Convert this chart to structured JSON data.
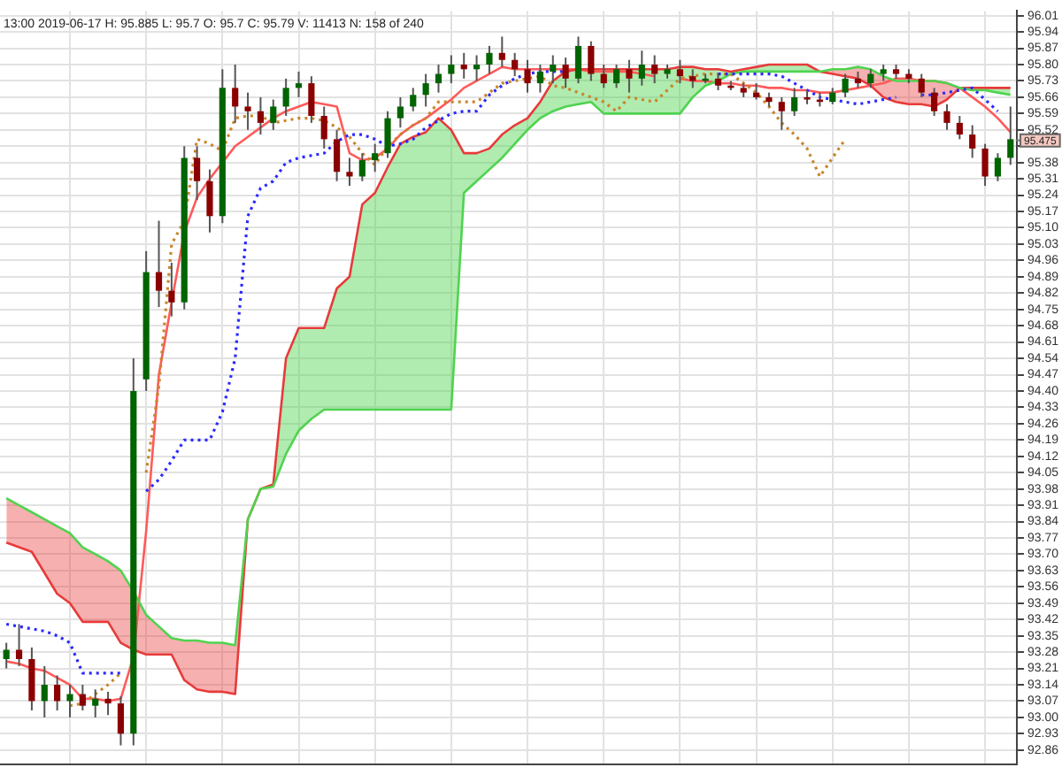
{
  "chart_data": {
    "type": "candlestick",
    "annotations": [
      "13:00 2019-06-17 H: 95.885 L: 95.7 O: 95.7 C: 95.79 V: 11413 N: 158 of 240",
      {
        "text": "95.475",
        "y": 95.475
      }
    ],
    "categories": [
      null,
      null,
      null,
      null,
      null,
      null,
      null,
      null,
      null,
      null,
      null,
      null,
      null,
      null,
      null,
      null,
      null,
      null,
      null,
      null,
      null,
      null,
      null,
      null,
      null,
      null,
      null,
      null,
      null,
      null,
      null,
      null,
      null,
      null,
      null,
      null,
      null,
      null,
      null,
      null,
      null,
      null,
      null,
      null,
      null,
      null,
      null,
      null,
      null,
      null,
      null,
      null,
      null,
      null,
      null,
      null,
      null,
      null,
      null,
      null,
      null,
      null,
      null,
      null,
      null,
      null,
      null,
      null,
      null,
      null,
      null,
      null,
      null,
      null,
      null,
      null,
      null,
      null,
      null,
      null
    ],
    "ohlc": [
      [
        93.25,
        93.32,
        93.21,
        93.29
      ],
      [
        93.29,
        93.4,
        93.22,
        93.25
      ],
      [
        93.25,
        93.3,
        93.03,
        93.07
      ],
      [
        93.07,
        93.22,
        93.0,
        93.14
      ],
      [
        93.14,
        93.18,
        93.03,
        93.07
      ],
      [
        93.07,
        93.14,
        93.0,
        93.1
      ],
      [
        93.1,
        93.14,
        93.03,
        93.05
      ],
      [
        93.05,
        93.12,
        93.0,
        93.08
      ],
      [
        93.08,
        93.11,
        93.01,
        93.06
      ],
      [
        93.06,
        93.09,
        92.88,
        92.93
      ],
      [
        92.93,
        94.54,
        92.88,
        94.4
      ],
      [
        94.45,
        95.0,
        94.4,
        94.91
      ],
      [
        94.91,
        95.13,
        94.76,
        94.83
      ],
      [
        94.83,
        94.95,
        94.72,
        94.78
      ],
      [
        94.78,
        95.45,
        94.75,
        95.4
      ],
      [
        95.4,
        95.45,
        95.22,
        95.3
      ],
      [
        95.3,
        95.35,
        95.08,
        95.15
      ],
      [
        95.15,
        95.78,
        95.12,
        95.7
      ],
      [
        95.7,
        95.8,
        95.55,
        95.62
      ],
      [
        95.62,
        95.68,
        95.52,
        95.6
      ],
      [
        95.6,
        95.66,
        95.5,
        95.55
      ],
      [
        95.55,
        95.65,
        95.52,
        95.62
      ],
      [
        95.62,
        95.74,
        95.58,
        95.7
      ],
      [
        95.7,
        95.77,
        95.66,
        95.72
      ],
      [
        95.72,
        95.75,
        95.55,
        95.58
      ],
      [
        95.58,
        95.62,
        95.44,
        95.48
      ],
      [
        95.48,
        95.52,
        95.3,
        95.34
      ],
      [
        95.34,
        95.4,
        95.28,
        95.32
      ],
      [
        95.32,
        95.42,
        95.3,
        95.39
      ],
      [
        95.39,
        95.46,
        95.34,
        95.42
      ],
      [
        95.42,
        95.6,
        95.4,
        95.57
      ],
      [
        95.57,
        95.66,
        95.53,
        95.62
      ],
      [
        95.62,
        95.7,
        95.6,
        95.67
      ],
      [
        95.67,
        95.76,
        95.62,
        95.72
      ],
      [
        95.72,
        95.8,
        95.68,
        95.76
      ],
      [
        95.76,
        95.84,
        95.72,
        95.8
      ],
      [
        95.8,
        95.85,
        95.74,
        95.78
      ],
      [
        95.78,
        95.84,
        95.73,
        95.8
      ],
      [
        95.8,
        95.88,
        95.76,
        95.85
      ],
      [
        95.85,
        95.92,
        95.79,
        95.82
      ],
      [
        95.82,
        95.85,
        95.75,
        95.78
      ],
      [
        95.78,
        95.82,
        95.68,
        95.72
      ],
      [
        95.72,
        95.8,
        95.68,
        95.77
      ],
      [
        95.77,
        95.84,
        95.72,
        95.8
      ],
      [
        95.8,
        95.83,
        95.7,
        95.74
      ],
      [
        95.74,
        95.92,
        95.72,
        95.88
      ],
      [
        95.88,
        95.9,
        95.73,
        95.76
      ],
      [
        95.76,
        95.8,
        95.7,
        95.72
      ],
      [
        95.72,
        95.8,
        95.7,
        95.78
      ],
      [
        95.78,
        95.82,
        95.68,
        95.74
      ],
      [
        95.74,
        95.86,
        95.71,
        95.8
      ],
      [
        95.8,
        95.84,
        95.72,
        95.76
      ],
      [
        95.76,
        95.8,
        95.74,
        95.78
      ],
      [
        95.78,
        95.82,
        95.72,
        95.75
      ],
      [
        95.75,
        95.78,
        95.7,
        95.73
      ],
      [
        95.73,
        95.76,
        95.72,
        95.74
      ],
      [
        95.74,
        95.76,
        95.69,
        95.71
      ],
      [
        95.71,
        95.73,
        95.69,
        95.7
      ],
      [
        95.7,
        95.72,
        95.66,
        95.68
      ],
      [
        95.68,
        95.72,
        95.65,
        95.66
      ],
      [
        95.66,
        95.68,
        95.62,
        95.64
      ],
      [
        95.64,
        95.66,
        95.52,
        95.6
      ],
      [
        95.6,
        95.7,
        95.58,
        95.66
      ],
      [
        95.66,
        95.69,
        95.63,
        95.65
      ],
      [
        95.65,
        95.68,
        95.62,
        95.64
      ],
      [
        95.64,
        95.7,
        95.63,
        95.68
      ],
      [
        95.68,
        95.76,
        95.66,
        95.74
      ],
      [
        95.74,
        95.77,
        95.7,
        95.72
      ],
      [
        95.72,
        95.78,
        95.7,
        95.76
      ],
      [
        95.76,
        95.8,
        95.73,
        95.78
      ],
      [
        95.78,
        95.8,
        95.74,
        95.76
      ],
      [
        95.76,
        95.78,
        95.72,
        95.74
      ],
      [
        95.74,
        95.76,
        95.66,
        95.68
      ],
      [
        95.68,
        95.7,
        95.58,
        95.6
      ],
      [
        95.6,
        95.63,
        95.52,
        95.55
      ],
      [
        95.55,
        95.58,
        95.48,
        95.5
      ],
      [
        95.5,
        95.54,
        95.4,
        95.44
      ],
      [
        95.44,
        95.46,
        95.28,
        95.32
      ],
      [
        95.32,
        95.42,
        95.3,
        95.4
      ],
      [
        95.4,
        95.62,
        95.37,
        95.48
      ]
    ],
    "colors": [
      "#006400",
      "#8b0000",
      "#8b0000",
      "#006400",
      "#8b0000",
      "#006400",
      "#8b0000",
      "#006400",
      "#8b0000",
      "#8b0000",
      "#006400",
      "#006400",
      "#8b0000",
      "#8b0000",
      "#006400",
      "#8b0000",
      "#8b0000",
      "#006400",
      "#8b0000",
      "#8b0000",
      "#8b0000",
      "#006400",
      "#006400",
      "#006400",
      "#8b0000",
      "#8b0000",
      "#8b0000",
      "#8b0000",
      "#006400",
      "#006400",
      "#006400",
      "#006400",
      "#006400",
      "#006400",
      "#006400",
      "#006400",
      "#8b0000",
      "#006400",
      "#006400",
      "#8b0000",
      "#8b0000",
      "#8b0000",
      "#006400",
      "#006400",
      "#8b0000",
      "#006400",
      "#8b0000",
      "#8b0000",
      "#006400",
      "#8b0000",
      "#006400",
      "#8b0000",
      "#006400",
      "#8b0000",
      "#8b0000",
      "#006400",
      "#8b0000",
      "#8b0000",
      "#8b0000",
      "#8b0000",
      "#8b0000",
      "#8b0000",
      "#006400",
      "#8b0000",
      "#8b0000",
      "#006400",
      "#006400",
      "#8b0000",
      "#006400",
      "#006400",
      "#8b0000",
      "#8b0000",
      "#8b0000",
      "#8b0000",
      "#8b0000",
      "#8b0000",
      "#8b0000",
      "#8b0000",
      "#006400",
      "#006400"
    ],
    "series": [
      {
        "type": "line",
        "color": "#4fd34f",
        "values": [
          93.94,
          93.91,
          93.88,
          93.85,
          93.82,
          93.79,
          93.73,
          93.7,
          93.67,
          93.63,
          93.54,
          93.44,
          93.39,
          93.34,
          93.33,
          93.33,
          93.32,
          93.32,
          93.31,
          93.85,
          93.98,
          93.99,
          94.13,
          94.23,
          94.28,
          94.32,
          94.32,
          94.32,
          94.32,
          94.32,
          94.32,
          94.32,
          94.32,
          94.32,
          94.32,
          94.32,
          95.25,
          95.3,
          95.35,
          95.4,
          95.46,
          95.52,
          95.57,
          95.6,
          95.62,
          95.63,
          95.64,
          95.59,
          95.59,
          95.59,
          95.59,
          95.59,
          95.59,
          95.59,
          95.66,
          95.71,
          95.73,
          95.76,
          95.77,
          95.77,
          95.77,
          95.77,
          95.77,
          95.77,
          95.77,
          95.78,
          95.78,
          95.79,
          95.78,
          95.75,
          95.73,
          95.73,
          95.73,
          95.73,
          95.72,
          95.7,
          95.69,
          95.69,
          95.68,
          95.67
        ]
      },
      {
        "type": "line",
        "color": "#e83a3a",
        "values": [
          93.75,
          93.73,
          93.71,
          93.62,
          93.53,
          93.49,
          93.41,
          93.41,
          93.41,
          93.32,
          93.29,
          93.27,
          93.27,
          93.27,
          93.16,
          93.12,
          93.11,
          93.11,
          93.1,
          93.85,
          93.98,
          94.0,
          94.54,
          94.67,
          94.67,
          94.67,
          94.84,
          94.89,
          95.2,
          95.25,
          95.36,
          95.46,
          95.49,
          95.51,
          95.57,
          95.52,
          95.42,
          95.42,
          95.44,
          95.5,
          95.54,
          95.57,
          95.64,
          95.73,
          95.77,
          95.78,
          95.78,
          95.78,
          95.78,
          95.78,
          95.78,
          95.78,
          95.78,
          95.79,
          95.79,
          95.78,
          95.78,
          95.77,
          95.78,
          95.79,
          95.8,
          95.8,
          95.8,
          95.8,
          95.77,
          95.76,
          95.75,
          95.74,
          95.71,
          95.66,
          95.64,
          95.63,
          95.63,
          95.62,
          95.65,
          95.7,
          95.7,
          95.7,
          95.7,
          95.7
        ],
        "lower": [
          93.94,
          93.91,
          93.88,
          93.85,
          93.82,
          93.79,
          93.73,
          93.7,
          93.67,
          93.63,
          93.54,
          93.44,
          93.39,
          93.34,
          93.33,
          93.33,
          93.32,
          93.32,
          93.31,
          93.85,
          93.98,
          93.99,
          94.13,
          94.23,
          94.28,
          94.32,
          94.32,
          94.32,
          94.32,
          94.32,
          94.32,
          94.32,
          94.32,
          94.32,
          94.32,
          94.32,
          95.25,
          95.3,
          95.35,
          95.4,
          95.46,
          95.52,
          95.57,
          95.6,
          95.62,
          95.63,
          95.64,
          95.59,
          95.59,
          95.59,
          95.59,
          95.59,
          95.59,
          95.59,
          95.66,
          95.71,
          95.73,
          95.76,
          95.77,
          95.77,
          95.77,
          95.77,
          95.77,
          95.77,
          95.77,
          95.78,
          95.78,
          95.79,
          95.78,
          95.75,
          95.73,
          95.73,
          95.73,
          95.73,
          95.72,
          95.7,
          95.69,
          95.69,
          95.68,
          95.67
        ],
        "upper": [
          93.75,
          93.73,
          93.71,
          93.62,
          93.53,
          93.49,
          93.41,
          93.41,
          93.41,
          93.32,
          93.29,
          93.27,
          93.27,
          93.27,
          93.16,
          93.12,
          93.11,
          93.11,
          93.1,
          93.85,
          93.98,
          94.0,
          94.54,
          94.67,
          94.67,
          94.67,
          94.84,
          94.89,
          95.2,
          95.25,
          95.36,
          95.46,
          95.49,
          95.51,
          95.57,
          95.52,
          95.42,
          95.42,
          95.44,
          95.5,
          95.54,
          95.57,
          95.64,
          95.73,
          95.77,
          95.78,
          95.78,
          95.78,
          95.78,
          95.78,
          95.78,
          95.78,
          95.78,
          95.79,
          95.79,
          95.78,
          95.78,
          95.77,
          95.78,
          95.79,
          95.8,
          95.8,
          95.8,
          95.8,
          95.77,
          95.76,
          95.75,
          95.74,
          95.71,
          95.66,
          95.64,
          95.63,
          95.63,
          95.62,
          95.65,
          95.7,
          95.7,
          95.7,
          95.7,
          95.7
        ]
      },
      {
        "type": "line",
        "color": "#ff5a5a",
        "values": [
          93.24,
          93.23,
          93.21,
          93.2,
          93.17,
          93.14,
          93.08,
          93.08,
          93.07,
          93.08,
          93.26,
          93.8,
          94.47,
          94.78,
          95.08,
          95.23,
          95.31,
          95.38,
          95.45,
          95.49,
          95.53,
          95.57,
          95.6,
          95.62,
          95.64,
          95.63,
          95.62,
          95.42,
          95.39,
          95.4,
          95.44,
          95.5,
          95.54,
          95.57,
          95.61,
          95.65,
          95.7,
          95.73,
          95.76,
          95.79,
          95.78,
          95.78,
          95.78,
          95.78,
          95.78,
          95.78,
          95.77,
          95.77,
          95.77,
          95.77,
          95.76,
          95.75,
          null,
          95.74,
          95.73,
          95.73,
          95.72,
          95.72,
          95.71,
          95.71,
          95.7,
          95.7,
          95.69,
          95.69,
          95.68,
          95.68,
          95.69,
          95.7,
          95.71,
          95.72,
          95.74,
          95.74,
          95.73,
          95.73,
          95.72,
          95.7,
          95.66,
          95.62,
          95.57,
          95.51
        ]
      },
      {
        "type": "line",
        "line_style": "dotted",
        "color": "#2a2aff",
        "values": [
          93.4,
          93.39,
          93.38,
          93.37,
          93.35,
          93.32,
          93.19,
          93.19,
          93.19,
          93.19,
          null,
          93.97,
          94.02,
          94.1,
          94.19,
          94.19,
          94.19,
          94.31,
          94.54,
          95.15,
          95.27,
          95.3,
          95.38,
          95.4,
          95.41,
          95.42,
          95.47,
          95.5,
          95.5,
          95.48,
          95.45,
          95.46,
          95.48,
          95.53,
          95.56,
          95.59,
          95.6,
          95.6,
          95.67,
          95.71,
          95.74,
          95.76,
          95.77,
          95.77,
          95.77,
          null,
          null,
          null,
          null,
          null,
          null,
          null,
          null,
          null,
          null,
          null,
          95.76,
          95.76,
          95.76,
          95.76,
          95.76,
          95.75,
          95.72,
          95.69,
          95.66,
          95.65,
          95.64,
          95.63,
          95.64,
          95.65,
          95.66,
          null,
          95.67,
          95.67,
          95.68,
          95.69,
          95.7,
          95.65,
          95.6,
          null
        ]
      },
      {
        "type": "line",
        "line_style": "dotted",
        "color": "#c8862a",
        "values": [
          null,
          null,
          null,
          null,
          null,
          93.05,
          93.06,
          93.1,
          93.14,
          93.19,
          null,
          94.05,
          94.42,
          95.03,
          95.13,
          95.48,
          95.46,
          95.43,
          95.57,
          95.58,
          95.58,
          95.55,
          95.56,
          95.57,
          95.57,
          95.56,
          95.53,
          95.49,
          95.42,
          95.37,
          95.45,
          95.5,
          95.54,
          95.57,
          95.64,
          95.64,
          95.64,
          95.64,
          95.68,
          95.72,
          95.73,
          95.74,
          95.75,
          95.71,
          95.7,
          95.68,
          95.66,
          95.64,
          95.6,
          95.66,
          95.65,
          95.64,
          95.69,
          95.74,
          95.75,
          95.76,
          95.76,
          95.76,
          95.72,
          95.68,
          95.62,
          95.55,
          95.5,
          95.44,
          95.32,
          95.4,
          95.48,
          null,
          null,
          null,
          null,
          null,
          null,
          null,
          null,
          null,
          null,
          null,
          null,
          null
        ]
      }
    ],
    "ylim": [
      92.8,
      96.03
    ],
    "yticks": [
      92.86,
      92.93,
      {
        "value": 93,
        "label": "93.00"
      },
      93.07,
      93.14,
      93.21,
      93.28,
      93.35,
      93.42,
      93.49,
      93.56,
      93.63,
      {
        "value": 93.7,
        "label": "93.70"
      },
      93.77,
      93.84,
      93.91,
      93.98,
      94.05,
      94.12,
      94.19,
      94.26,
      94.33,
      {
        "value": 94.4,
        "label": "94.40"
      },
      94.47,
      94.54,
      94.61,
      94.68,
      94.75,
      94.82,
      94.89,
      94.96,
      95.03,
      {
        "value": 95.1,
        "label": "95.10"
      },
      95.17,
      95.24,
      95.31,
      95.38,
      {
        "value": 95.45,
        "label": null
      },
      95.52,
      95.59,
      95.66,
      95.73,
      {
        "value": 95.8,
        "label": "95.80"
      },
      95.87,
      95.94,
      96.01
    ],
    "grid": true
  }
}
